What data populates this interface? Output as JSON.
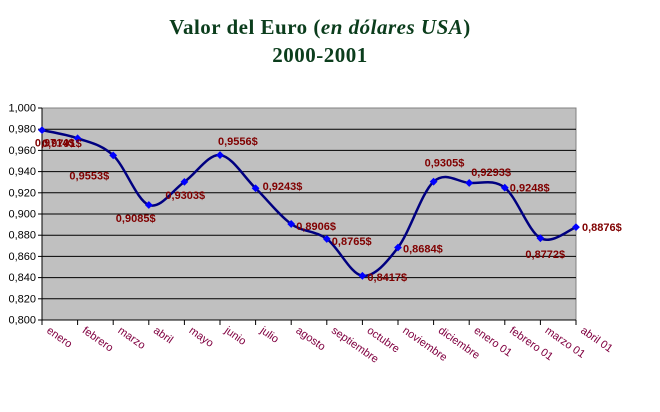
{
  "title": {
    "part1": "Valor del Euro (",
    "part2": "en dólares USA",
    "part3": ")"
  },
  "subtitle": "2000-2001",
  "colors": {
    "title": "#0b3d1c",
    "line": "#000080",
    "marker": "#0000ff",
    "labels": "#800000",
    "categories": "#800040",
    "plot_bg": "#c0c0c0"
  },
  "chart_data": {
    "type": "line",
    "title": "Valor del Euro (en dólares USA)",
    "subtitle": "2000-2001",
    "categories": [
      "enero",
      "febrero",
      "marzo",
      "abril",
      "mayo",
      "junio",
      "julio",
      "agosto",
      "septiembre",
      "octubre",
      "noviembre",
      "diciembre",
      "enero 01",
      "febrero 01",
      "marzo 01",
      "abril 01"
    ],
    "series": [
      {
        "values": [
          0.9791,
          0.9714,
          0.9553,
          0.9085,
          0.9303,
          0.9556,
          0.9243,
          0.8906,
          0.8765,
          0.8417,
          0.8684,
          0.9305,
          0.9293,
          0.9248,
          0.8772,
          0.8876
        ],
        "labels": [
          "0,9791$",
          "0,9714$",
          "0,9553$",
          "0,9085$",
          "0,9303$",
          "0,9556$",
          "0,9243$",
          "0,8906$",
          "0,8765$",
          "0,8417$",
          "0,8684$",
          "0,9305$",
          "0,9293$",
          "0,9248$",
          "0,8772$",
          "0,8876$"
        ]
      }
    ],
    "ylim": [
      0.8,
      1.0
    ],
    "y_ticks": [
      "0,800",
      "0,820",
      "0,840",
      "0,860",
      "0,880",
      "0,900",
      "0,920",
      "0,940",
      "0,960",
      "0,980",
      "1,000"
    ],
    "grid": true,
    "smooth": true,
    "legend": false
  }
}
